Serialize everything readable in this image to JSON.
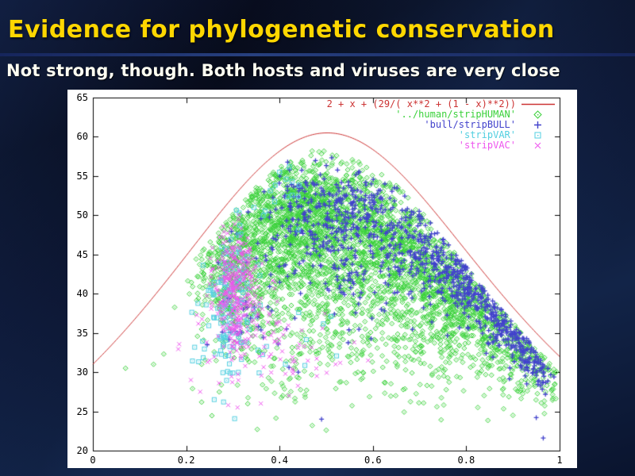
{
  "slide": {
    "title": "Evidence for phylogenetic conservation",
    "subtitle": "Not strong, though. Both hosts and viruses are very close"
  },
  "colors": {
    "title": "#ffd700",
    "subtitle": "#fffff2",
    "divider": "#27407f",
    "panel_background": "#ffffff",
    "axis": "#000000",
    "curve_red": "#cc3333",
    "series_green": "#3ad13a",
    "series_blue": "#4242cc",
    "series_cyan": "#52cfe0",
    "series_magenta": "#ee55ee"
  },
  "chart_data": {
    "type": "scatter",
    "title": "",
    "xlabel": "",
    "ylabel": "",
    "xlim": [
      0,
      1
    ],
    "ylim": [
      20,
      65
    ],
    "grid": false,
    "legend_position": "top-right-inside",
    "x_ticks": [
      {
        "value": 0,
        "label": "0"
      },
      {
        "value": 0.2,
        "label": "0.2"
      },
      {
        "value": 0.4,
        "label": "0.4"
      },
      {
        "value": 0.6,
        "label": "0.6"
      },
      {
        "value": 0.8,
        "label": "0.8"
      },
      {
        "value": 1,
        "label": "1"
      }
    ],
    "y_ticks": [
      {
        "value": 20,
        "label": "20"
      },
      {
        "value": 25,
        "label": "25"
      },
      {
        "value": 30,
        "label": "30"
      },
      {
        "value": 35,
        "label": "35"
      },
      {
        "value": 40,
        "label": "40"
      },
      {
        "value": 45,
        "label": "45"
      },
      {
        "value": 50,
        "label": "50"
      },
      {
        "value": 55,
        "label": "55"
      },
      {
        "value": 60,
        "label": "60"
      },
      {
        "value": 65,
        "label": "65"
      }
    ],
    "curve": {
      "label": "2 + x + (29/( x**2 + (1 - x)**2))",
      "color": "#cc3333",
      "formula": "y = 2 + x + 29/(x^2 + (1-x)^2)",
      "sample_points": {
        "x": [
          0,
          0.1,
          0.2,
          0.3,
          0.4,
          0.5,
          0.6,
          0.7,
          0.8,
          0.9,
          1
        ],
        "y": [
          31.0,
          37.5,
          44.8,
          52.3,
          58.2,
          60.5,
          58.4,
          52.7,
          45.4,
          38.3,
          32.0
        ]
      }
    },
    "series": [
      {
        "name": "'../human/stripHUMAN'",
        "marker": "diamond",
        "color": "#3ad13a",
        "clusters": [
          {
            "n": 1600,
            "cx": 0.5,
            "cy": 46.5,
            "sx": 0.14,
            "sy": 5.0
          },
          {
            "n": 600,
            "cx": 0.44,
            "cy": 51.5,
            "sx": 0.09,
            "sy": 3.0
          },
          {
            "n": 350,
            "cx": 0.31,
            "cy": 42.0,
            "sx": 0.05,
            "sy": 4.0
          },
          {
            "n": 250,
            "cx": 0.55,
            "cy": 36.0,
            "sx": 0.15,
            "sy": 4.0
          },
          {
            "n": 250,
            "cx": 0.78,
            "cy": 38.0,
            "sx": 0.09,
            "sy": 3.5
          },
          {
            "n": 120,
            "cx": 0.75,
            "cy": 31.0,
            "sx": 0.12,
            "sy": 3.0
          },
          {
            "n": 60,
            "cx": 0.4,
            "cy": 30.0,
            "sx": 0.08,
            "sy": 3.0
          }
        ],
        "bands": [
          {
            "n": 900,
            "x0": 0.6,
            "y0": 48.0,
            "x1": 1.0,
            "y1": 29.5,
            "jx": 0.035,
            "jy": 2.6
          }
        ],
        "outliers": [
          [
            0.07,
            30.5
          ],
          [
            0.47,
            23.2
          ],
          [
            0.5,
            22.6
          ],
          [
            0.9,
            24.5
          ],
          [
            0.97,
            27.5
          ],
          [
            0.99,
            28.5
          ],
          [
            0.13,
            31.0
          ]
        ]
      },
      {
        "name": "'bull/stripBULL'",
        "marker": "plus",
        "color": "#4242cc",
        "clusters": [
          {
            "n": 260,
            "cx": 0.57,
            "cy": 50.0,
            "sx": 0.1,
            "sy": 3.2
          },
          {
            "n": 220,
            "cx": 0.62,
            "cy": 44.5,
            "sx": 0.13,
            "sy": 4.0
          },
          {
            "n": 60,
            "cx": 0.46,
            "cy": 52.5,
            "sx": 0.04,
            "sy": 2.2
          },
          {
            "n": 25,
            "cx": 0.33,
            "cy": 36.5,
            "sx": 0.035,
            "sy": 3.0
          }
        ],
        "bands": [
          {
            "n": 430,
            "x0": 0.72,
            "y0": 46.0,
            "x1": 0.99,
            "y1": 29.5,
            "jx": 0.025,
            "jy": 1.8
          }
        ],
        "outliers": [
          [
            0.245,
            33.5
          ],
          [
            0.49,
            24.0
          ],
          [
            0.95,
            24.2
          ],
          [
            0.965,
            21.6
          ],
          [
            0.44,
            30.0
          ],
          [
            0.35,
            44.5
          ]
        ]
      },
      {
        "name": "'stripVAR'",
        "marker": "square",
        "color": "#52cfe0",
        "clusters": [
          {
            "n": 90,
            "cx": 0.3,
            "cy": 41.0,
            "sx": 0.03,
            "sy": 4.0
          },
          {
            "n": 45,
            "cx": 0.275,
            "cy": 33.5,
            "sx": 0.03,
            "sy": 3.0
          },
          {
            "n": 12,
            "cx": 0.42,
            "cy": 52.5,
            "sx": 0.025,
            "sy": 2.0
          },
          {
            "n": 10,
            "cx": 0.47,
            "cy": 35.0,
            "sx": 0.06,
            "sy": 3.0
          }
        ],
        "bands": [],
        "outliers": [
          [
            0.26,
            26.5
          ],
          [
            0.28,
            26.2
          ],
          [
            0.345,
            51.0
          ],
          [
            0.4,
            55.5
          ],
          [
            0.3,
            29.9
          ]
        ]
      },
      {
        "name": "'stripVAC'",
        "marker": "x",
        "color": "#ee55ee",
        "clusters": [
          {
            "n": 260,
            "cx": 0.305,
            "cy": 42.0,
            "sx": 0.022,
            "sy": 4.0
          },
          {
            "n": 90,
            "cx": 0.315,
            "cy": 37.0,
            "sx": 0.045,
            "sy": 2.8
          },
          {
            "n": 60,
            "cx": 0.38,
            "cy": 33.0,
            "sx": 0.09,
            "sy": 3.2
          }
        ],
        "bands": [],
        "outliers": [
          [
            0.21,
            29.0
          ],
          [
            0.23,
            27.5
          ],
          [
            0.29,
            25.8
          ],
          [
            0.31,
            25.5
          ],
          [
            0.36,
            26.0
          ],
          [
            0.42,
            27.0
          ],
          [
            0.48,
            29.5
          ],
          [
            0.52,
            31.0
          ],
          [
            0.56,
            33.8
          ],
          [
            0.25,
            31.5
          ]
        ]
      }
    ]
  }
}
